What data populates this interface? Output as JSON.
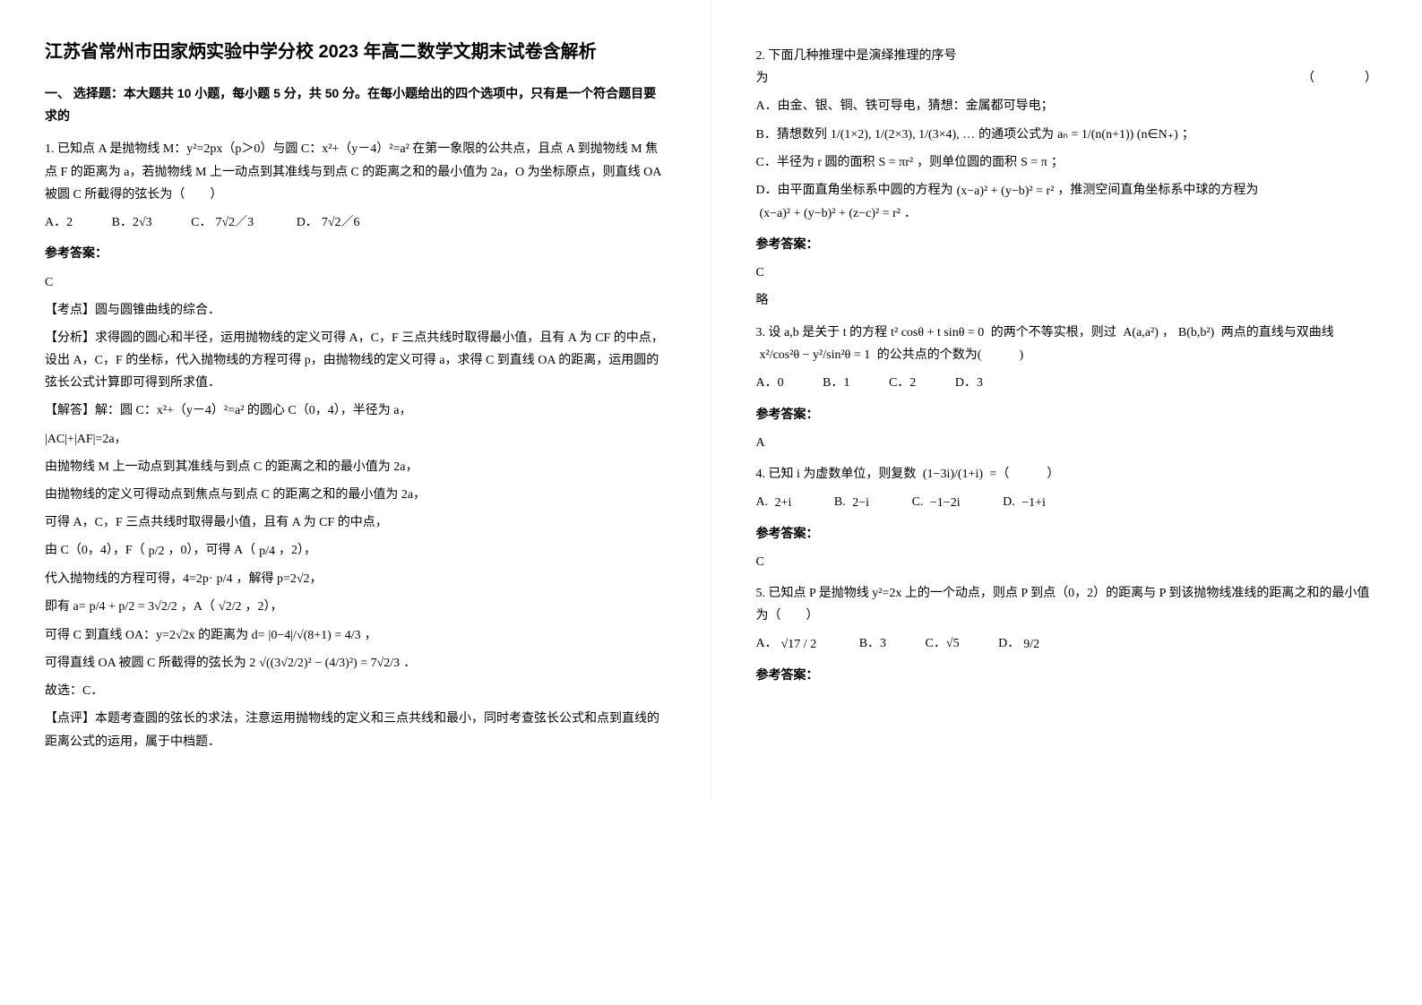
{
  "title": "江苏省常州市田家炳实验中学分校 2023 年高二数学文期末试卷含解析",
  "section1_heading": "一、 选择题：本大题共 10 小题，每小题 5 分，共 50 分。在每小题给出的四个选项中，只有是一个符合题目要求的",
  "p1_stem": "1. 已知点 A 是抛物线 M：y²=2px（p＞0）与圆 C：x²+（y－4）²=a² 在第一象限的公共点，且点 A 到抛物线 M 焦点 F 的距离为 a，若抛物线 M 上一动点到其准线与到点 C 的距离之和的最小值为 2a，O 为坐标原点，则直线 OA 被圆 C 所截得的弦长为（　　）",
  "p1_A": "A．2",
  "p1_B": "B．2√3",
  "p1_C_prefix": "C．",
  "p1_C_formula": "7√2／3",
  "p1_D_prefix": "D．",
  "p1_D_formula": "7√2／6",
  "p1_answer_label": "参考答案：",
  "p1_answer": "C",
  "p1_point": "【考点】圆与圆锥曲线的综合．",
  "p1_analysis": "【分析】求得圆的圆心和半径，运用抛物线的定义可得 A，C，F 三点共线时取得最小值，且有 A 为 CF 的中点，设出 A，C，F 的坐标，代入抛物线的方程可得 p，由抛物线的定义可得 a，求得 C 到直线 OA 的距离，运用圆的弦长公式计算即可得到所求值．",
  "p1_sol1": "【解答】解：圆 C：x²+（y－4）²=a² 的圆心 C（0，4），半径为 a，",
  "p1_sol2": "|AC|+|AF|=2a，",
  "p1_sol3": "由抛物线 M 上一动点到其准线与到点 C 的距离之和的最小值为 2a，",
  "p1_sol4": "由抛物线的定义可得动点到焦点与到点 C 的距离之和的最小值为 2a，",
  "p1_sol5": "可得 A，C，F 三点共线时取得最小值，且有 A 为 CF 的中点，",
  "p1_sol6_prefix": "由 C（0，4），F（",
  "p1_sol6_f1": "p/2",
  "p1_sol6_mid": "，0），可得 A（",
  "p1_sol6_f2": "p/4",
  "p1_sol6_end": "，2），",
  "p1_sol7_prefix": "代入抛物线的方程可得，4=2p·",
  "p1_sol7_f1": "p/4",
  "p1_sol7_end": "，解得 p=2√2，",
  "p1_sol8_prefix": "即有 a=",
  "p1_sol8_f1": "p/4 + p/2 = 3√2/2",
  "p1_sol8_end": "，A（",
  "p1_sol8_f2": "√2/2",
  "p1_sol8_end2": "，2），",
  "p1_sol9_prefix": "可得 C 到直线 OA：y=2√2x 的距离为 d=",
  "p1_sol9_f1": "|0−4|/√(8+1) = 4/3",
  "p1_sol9_end": "，",
  "p1_sol10_prefix": "可得直线 OA 被圆 C 所截得的弦长为 2",
  "p1_sol10_f1": "√((3√2/2)² − (4/3)²) = 7√2/3",
  "p1_sol10_end": "．",
  "p1_sol11": "故选：C．",
  "p1_comment": "【点评】本题考查圆的弦长的求法，注意运用抛物线的定义和三点共线和最小，同时考查弦长公式和点到直线的距离公式的运用，属于中档题．",
  "p2_stem_prefix": "2. 下面几种推理中是演绎推理的序号",
  "p2_stem_suffix": "为",
  "p2_bracket": "（　　　　）",
  "p2_A": "A．由金、银、铜、铁可导电，猜想：金属都可导电；",
  "p2_B_prefix": "B．猜想数列",
  "p2_B_f1": "1/(1×2), 1/(2×3), 1/(3×4), …",
  "p2_B_mid": "的通项公式为",
  "p2_B_f2": "aₙ = 1/(n(n+1))  (n∈N₊)",
  "p2_B_end": "；",
  "p2_C_prefix": "C．半径为 r 圆的面积",
  "p2_C_f1": "S = πr²",
  "p2_C_mid": "，则单位圆的面积",
  "p2_C_f2": "S = π",
  "p2_C_end": "；",
  "p2_D_prefix": "D．由平面直角坐标系中圆的方程为",
  "p2_D_f1": "(x−a)² + (y−b)² = r²",
  "p2_D_mid": "，推测空间直角坐标系中球的方程为",
  "p2_D_f2": "(x−a)² + (y−b)² + (z−c)² = r²",
  "p2_D_end": "．",
  "p2_answer_label": "参考答案：",
  "p2_answer": "C",
  "p2_brief": "略",
  "p3_stem_prefix": "3. 设 a,b 是关于 t 的方程",
  "p3_f1": "t² cosθ + t sinθ = 0",
  "p3_mid1": " 的两个不等实根，则过 ",
  "p3_f2": "A(a,a²)",
  "p3_mid2": "，",
  "p3_f3": "B(b,b²)",
  "p3_mid3": " 两点的直线与双曲线 ",
  "p3_f4": "x²/cos²θ − y²/sin²θ = 1",
  "p3_end": " 的公共点的个数为(　　　)",
  "p3_A": "A．0",
  "p3_B": "B．1",
  "p3_C": "C．2",
  "p3_D": "D．3",
  "p3_answer_label": "参考答案：",
  "p3_answer": "A",
  "p4_stem_prefix": "4. 已知 i 为虚数单位，则复数 ",
  "p4_f1": "(1−3i)/(1+i)",
  "p4_end": " =（　　　）",
  "p4_A_prefix": "A. ",
  "p4_A": "2+i",
  "p4_B_prefix": "B. ",
  "p4_B": "2−i",
  "p4_C_prefix": "C. ",
  "p4_C": "−1−2i",
  "p4_D_prefix": "D. ",
  "p4_D": "−1+i",
  "p4_answer_label": "参考答案：",
  "p4_answer": "C",
  "p5_stem": "5. 已知点 P 是抛物线 y²=2x 上的一个动点，则点 P 到点（0，2）的距离与 P 到该抛物线准线的距离之和的最小值为（　　）",
  "p5_A_prefix": "A．",
  "p5_A": "√17 / 2",
  "p5_B": "B．3",
  "p5_C": "C．√5",
  "p5_D_prefix": "D．",
  "p5_D": "9/2",
  "p5_answer_label": "参考答案："
}
